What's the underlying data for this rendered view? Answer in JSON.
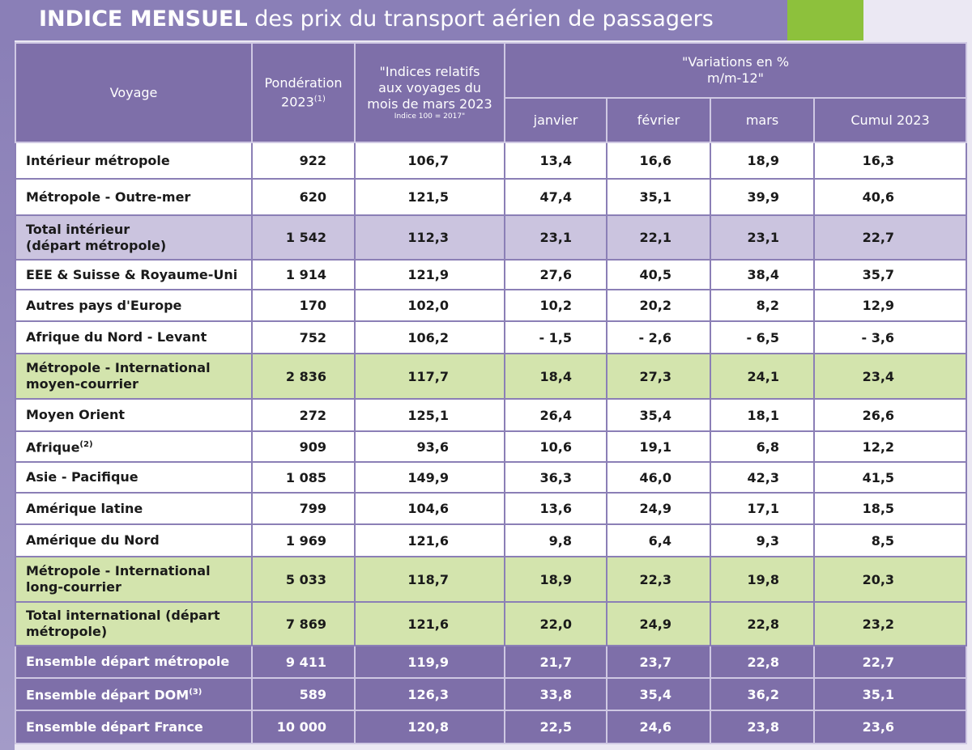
{
  "title": {
    "bold": "INDICE MENSUEL",
    "rest": "des prix du transport aérien de passagers"
  },
  "table": {
    "headers": {
      "voyage": "Voyage",
      "ponderation": {
        "lines": [
          "Pondération",
          "2023"
        ],
        "note": "(1)"
      },
      "indices": {
        "lines": [
          "\"Indices relatifs",
          "aux voyages du",
          "mois de mars 2023"
        ],
        "note": "Indice 100 = 2017\""
      },
      "variations": {
        "lines": [
          "\"Variations en %",
          "m/m-12\""
        ]
      },
      "months": [
        "janvier",
        "février",
        "mars",
        "Cumul 2023"
      ]
    },
    "rows": [
      {
        "label": [
          "Intérieur métropole"
        ],
        "fill": "#ffffff",
        "values": [
          "922",
          "106,7",
          "13,4",
          "16,6",
          "18,9",
          "16,3"
        ]
      },
      {
        "label": [
          "Métropole - Outre-mer"
        ],
        "fill": "#ffffff",
        "values": [
          "620",
          "121,5",
          "47,4",
          "35,1",
          "39,9",
          "40,6"
        ]
      },
      {
        "label": [
          "Total intérieur",
          "(départ métropole)"
        ],
        "fill": "#cbc4df",
        "values": [
          "1 542",
          "112,3",
          "23,1",
          "22,1",
          "23,1",
          "22,7"
        ]
      },
      {
        "label": [
          "EEE & Suisse & Royaume-Uni"
        ],
        "fill": "#ffffff",
        "values": [
          "1 914",
          "121,9",
          "27,6",
          "40,5",
          "38,4",
          "35,7"
        ]
      },
      {
        "label": [
          "Autres pays d'Europe"
        ],
        "fill": "#ffffff",
        "values": [
          "170",
          "102,0",
          "10,2",
          "20,2",
          "8,2",
          "12,9"
        ]
      },
      {
        "label": [
          "Afrique du Nord - Levant"
        ],
        "fill": "#ffffff",
        "values": [
          "752",
          "106,2",
          "- 1,5",
          "- 2,6",
          "- 6,5",
          "- 3,6"
        ]
      },
      {
        "label": [
          "Métropole - International",
          "moyen-courrier"
        ],
        "fill": "#d3e4ad",
        "values": [
          "2 836",
          "117,7",
          "18,4",
          "27,3",
          "24,1",
          "23,4"
        ]
      },
      {
        "label": [
          "Moyen Orient"
        ],
        "fill": "#ffffff",
        "values": [
          "272",
          "125,1",
          "26,4",
          "35,4",
          "18,1",
          "26,6"
        ]
      },
      {
        "label": [
          "Afrique"
        ],
        "note": "(2)",
        "fill": "#ffffff",
        "values": [
          "909",
          "93,6",
          "10,6",
          "19,1",
          "6,8",
          "12,2"
        ]
      },
      {
        "label": [
          "Asie - Pacifique"
        ],
        "fill": "#ffffff",
        "values": [
          "1 085",
          "149,9",
          "36,3",
          "46,0",
          "42,3",
          "41,5"
        ]
      },
      {
        "label": [
          "Amérique latine"
        ],
        "fill": "#ffffff",
        "values": [
          "799",
          "104,6",
          "13,6",
          "24,9",
          "17,1",
          "18,5"
        ]
      },
      {
        "label": [
          "Amérique du Nord"
        ],
        "fill": "#ffffff",
        "values": [
          "1 969",
          "121,6",
          "9,8",
          "6,4",
          "9,3",
          "8,5"
        ]
      },
      {
        "label": [
          "Métropole -  International",
          "long-courrier"
        ],
        "fill": "#d3e4ad",
        "values": [
          "5 033",
          "118,7",
          "18,9",
          "22,3",
          "19,8",
          "20,3"
        ]
      },
      {
        "label": [
          "Total international (départ",
          "métropole)"
        ],
        "fill": "#d3e4ad",
        "values": [
          "7 869",
          "121,6",
          "22,0",
          "24,9",
          "22,8",
          "23,2"
        ]
      },
      {
        "label": [
          "Ensemble départ métropole"
        ],
        "fill": "#7e6fa9",
        "values": [
          "9 411",
          "119,9",
          "21,7",
          "23,7",
          "22,8",
          "22,7"
        ]
      },
      {
        "label": [
          "Ensemble départ DOM"
        ],
        "note": "(3)",
        "fill": "#7e6fa9",
        "values": [
          "589",
          "126,3",
          "33,8",
          "35,4",
          "36,2",
          "35,1"
        ]
      },
      {
        "label": [
          "Ensemble départ France"
        ],
        "fill": "#7e6fa9",
        "values": [
          "10 000",
          "120,8",
          "22,5",
          "24,6",
          "23,8",
          "23,6"
        ]
      }
    ]
  }
}
